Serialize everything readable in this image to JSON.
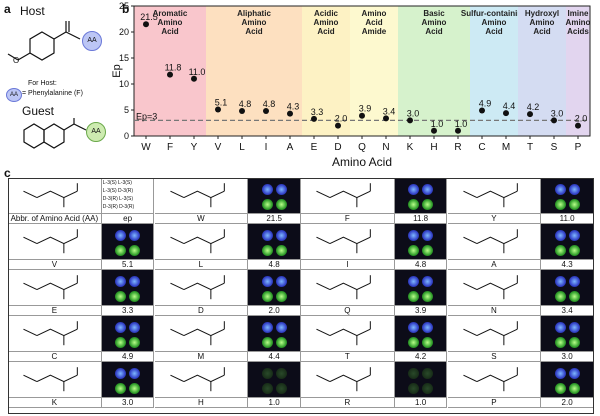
{
  "panel_a": {
    "label": "a",
    "host_title": "Host",
    "guest_title": "Guest",
    "aa_badge": "AA",
    "for_host_text": "For Host:",
    "host_aa_text": "= Phenylalanine (F)",
    "methoxy": "O"
  },
  "panel_b": {
    "label": "b",
    "categories": [
      {
        "name": "Aromatic Amino Acid",
        "color": "#f9c6cc"
      },
      {
        "name": "Aliphatic Amino Acid",
        "color": "#fde0c0"
      },
      {
        "name": "Acidic Amino Acid",
        "color": "#fdf2c4"
      },
      {
        "name": "Amino Acid Amide",
        "color": "#fdf9cf"
      },
      {
        "name": "Basic Amino Acid",
        "color": "#d6f2cc"
      },
      {
        "name": "Sulfur-containing Amino Acid",
        "color": "#cdeaf4"
      },
      {
        "name": "Hydroxyl Amino Acid",
        "color": "#d4dcf2"
      },
      {
        "name": "Imine Amino Acids",
        "color": "#e2d5ef"
      }
    ],
    "threshold_label": "Ep=3"
  },
  "chart_data": {
    "type": "scatter",
    "title": "",
    "xlabel": "Amino Acid",
    "ylabel": "Ep",
    "ylim": [
      0,
      25
    ],
    "yticks": [
      "0",
      "5",
      "10",
      "15",
      "20",
      "25"
    ],
    "categories": [
      "W",
      "F",
      "Y",
      "V",
      "L",
      "I",
      "A",
      "E",
      "D",
      "Q",
      "N",
      "K",
      "H",
      "R",
      "C",
      "M",
      "T",
      "S",
      "P"
    ],
    "values": [
      21.5,
      11.8,
      11.0,
      5.1,
      4.8,
      4.8,
      4.3,
      3.3,
      2.0,
      3.9,
      3.4,
      3.0,
      1.0,
      1.0,
      4.9,
      4.4,
      4.2,
      3.0,
      2.0
    ],
    "value_labels": [
      "21.5",
      "11.8",
      "11.0",
      "5.1",
      "4.8",
      "4.8",
      "4.3",
      "3.3",
      "2.0",
      "3.9",
      "3.4",
      "3.0",
      "1.0",
      "1.0",
      "4.9",
      "4.4",
      "4.2",
      "3.0",
      "2.0"
    ],
    "threshold": 3
  },
  "panel_c": {
    "label": "c",
    "header_texts": [
      "L-3(S)  L-3(S)",
      "L-3(S)  D-3(R)",
      "D-3(R)  L-3(S)",
      "D-3(R)  D-3(R)"
    ],
    "abbr_label": "Abbr. of Amino Acid (AA)",
    "ep_label": "ep",
    "rows": [
      [
        {
          "aa": "W",
          "ep": "21.5"
        },
        {
          "aa": "F",
          "ep": "11.8"
        },
        {
          "aa": "Y",
          "ep": "11.0"
        }
      ],
      [
        {
          "aa": "V",
          "ep": "5.1"
        },
        {
          "aa": "L",
          "ep": "4.8"
        },
        {
          "aa": "I",
          "ep": "4.8"
        },
        {
          "aa": "A",
          "ep": "4.3"
        }
      ],
      [
        {
          "aa": "E",
          "ep": "3.3"
        },
        {
          "aa": "D",
          "ep": "2.0"
        },
        {
          "aa": "Q",
          "ep": "3.9"
        },
        {
          "aa": "N",
          "ep": "3.4"
        }
      ],
      [
        {
          "aa": "C",
          "ep": "4.9"
        },
        {
          "aa": "M",
          "ep": "4.4"
        },
        {
          "aa": "T",
          "ep": "4.2"
        },
        {
          "aa": "S",
          "ep": "3.0"
        }
      ],
      [
        {
          "aa": "K",
          "ep": "3.0"
        },
        {
          "aa": "H",
          "ep": "1.0"
        },
        {
          "aa": "R",
          "ep": "1.0"
        },
        {
          "aa": "P",
          "ep": "2.0"
        }
      ]
    ]
  }
}
